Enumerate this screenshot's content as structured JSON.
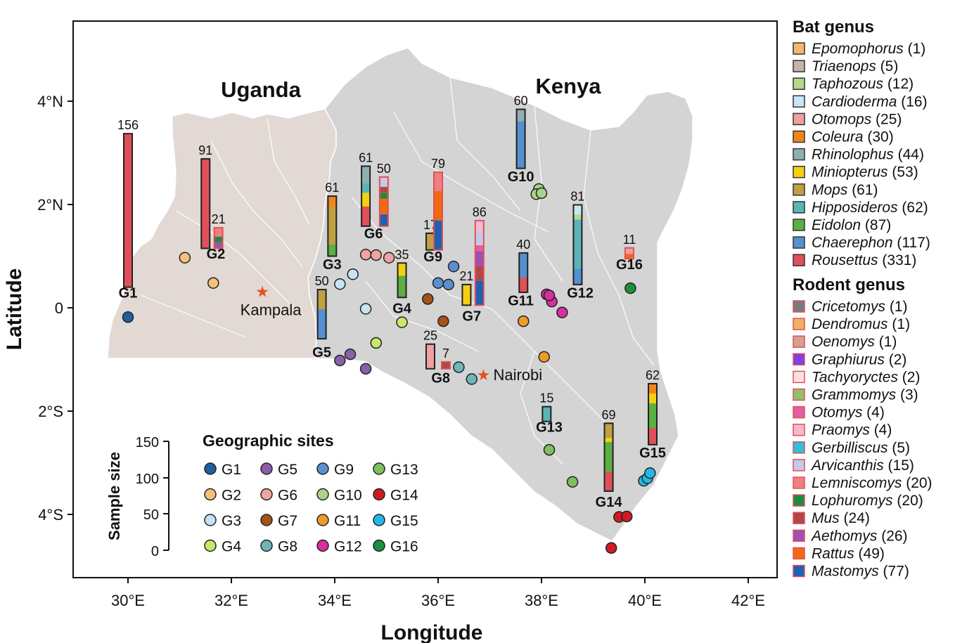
{
  "axes": {
    "xlabel": "Longitude",
    "ylabel": "Latitude",
    "xticks": [
      "30°E",
      "32°E",
      "34°E",
      "36°E",
      "38°E",
      "40°E",
      "42°E"
    ],
    "xtick_values": [
      30,
      32,
      34,
      36,
      38,
      40,
      42
    ],
    "yticks": [
      "4°N",
      "2°N",
      "0",
      "2°S",
      "4°S"
    ],
    "ytick_values": [
      4,
      2,
      0,
      -2,
      -4
    ],
    "xlim": [
      29,
      42.6
    ],
    "ylim": [
      -5.2,
      5.5
    ]
  },
  "map": {
    "countries": [
      {
        "name": "Uganda",
        "color": "#e2d9d4"
      },
      {
        "name": "Kenya",
        "color": "#d4d4d4"
      }
    ],
    "cities": [
      {
        "name": "Kampala",
        "lon": 32.6,
        "lat": 0.32,
        "color": "#e8501c"
      },
      {
        "name": "Nairobi",
        "lon": 36.85,
        "lat": -1.29,
        "color": "#e8501c"
      }
    ]
  },
  "chart_data": {
    "type": "map_stacked_bars",
    "colors": {
      "sites": {
        "G1": "#1f5fa0",
        "G2": "#f5c07a",
        "G3": "#c7e3f3",
        "G4": "#c7e86b",
        "G5": "#8a5ea8",
        "G6": "#f0a3a0",
        "G7": "#a5521b",
        "G8": "#6fb5b8",
        "G9": "#5a8fd0",
        "G10": "#a8d48a",
        "G11": "#ee9b2a",
        "G12": "#d62f9e",
        "G13": "#7fbf5f",
        "G14": "#d11b22",
        "G15": "#22b8e8",
        "G16": "#1e8f3e"
      }
    },
    "sample_size_scale": {
      "label": "Sample size",
      "ticks": [
        150,
        100,
        50,
        0
      ]
    },
    "bat_legend": {
      "title": "Bat genus",
      "items": [
        {
          "genus": "Epomophorus",
          "count": "(1)",
          "color": "#f5b870"
        },
        {
          "genus": "Triaenops",
          "count": "(5)",
          "color": "#c4b5a8"
        },
        {
          "genus": "Taphozous",
          "count": "(12)",
          "color": "#b5d98a"
        },
        {
          "genus": "Cardioderma",
          "count": "(16)",
          "color": "#c8e6f5"
        },
        {
          "genus": "Otomops",
          "count": "(25)",
          "color": "#f0a0a0"
        },
        {
          "genus": "Coleura",
          "count": "(30)",
          "color": "#f0861a"
        },
        {
          "genus": "Rhinolophus",
          "count": "(44)",
          "color": "#8fb0b0"
        },
        {
          "genus": "Miniopterus",
          "count": "(53)",
          "color": "#f5d010"
        },
        {
          "genus": "Mops",
          "count": "(61)",
          "color": "#c0a040"
        },
        {
          "genus": "Hipposideros",
          "count": "(62)",
          "color": "#5ab5b8"
        },
        {
          "genus": "Eidolon",
          "count": "(87)",
          "color": "#5ab040"
        },
        {
          "genus": "Chaerephon",
          "count": "(117)",
          "color": "#5590d0"
        },
        {
          "genus": "Rousettus",
          "count": "(331)",
          "color": "#e0505a"
        }
      ]
    },
    "rodent_legend": {
      "title": "Rodent genus",
      "items": [
        {
          "genus": "Cricetomys",
          "count": "(1)",
          "color": "#7a7a7a"
        },
        {
          "genus": "Dendromus",
          "count": "(1)",
          "color": "#f0b060"
        },
        {
          "genus": "Oenomys",
          "count": "(1)",
          "color": "#d4a090"
        },
        {
          "genus": "Graphiurus",
          "count": "(2)",
          "color": "#8040e0"
        },
        {
          "genus": "Tachyoryctes",
          "count": "(2)",
          "color": "#f8e0e0"
        },
        {
          "genus": "Grammomys",
          "count": "(3)",
          "color": "#90c070"
        },
        {
          "genus": "Otomys",
          "count": "(4)",
          "color": "#e060a0"
        },
        {
          "genus": "Praomys",
          "count": "(4)",
          "color": "#f8b8d0"
        },
        {
          "genus": "Gerbilliscus",
          "count": "(5)",
          "color": "#30c0d8"
        },
        {
          "genus": "Arvicanthis",
          "count": "(15)",
          "color": "#c8c8e8"
        },
        {
          "genus": "Lemniscomys",
          "count": "(20)",
          "color": "#f08080"
        },
        {
          "genus": "Lophuromys",
          "count": "(20)",
          "color": "#208a40"
        },
        {
          "genus": "Mus",
          "count": "(24)",
          "color": "#b04848"
        },
        {
          "genus": "Aethomys",
          "count": "(26)",
          "color": "#a050b0"
        },
        {
          "genus": "Rattus",
          "count": "(49)",
          "color": "#f06a10"
        },
        {
          "genus": "Mastomys",
          "count": "(77)",
          "color": "#2060b0"
        }
      ]
    },
    "sites_legend": {
      "title": "Geographic sites",
      "items": [
        "G1",
        "G2",
        "G3",
        "G4",
        "G5",
        "G6",
        "G7",
        "G8",
        "G9",
        "G10",
        "G11",
        "G12",
        "G13",
        "G14",
        "G15",
        "G16"
      ]
    },
    "site_labels": [
      {
        "id": "G1",
        "lon": 30.0,
        "lat": 0.2
      },
      {
        "id": "G2",
        "lon": 31.7,
        "lat": 0.95
      },
      {
        "id": "G3",
        "lon": 33.95,
        "lat": 0.75
      },
      {
        "id": "G4",
        "lon": 35.3,
        "lat": -0.1
      },
      {
        "id": "G5",
        "lon": 33.75,
        "lat": -0.95
      },
      {
        "id": "G6",
        "lon": 34.75,
        "lat": 1.35
      },
      {
        "id": "G7",
        "lon": 36.65,
        "lat": -0.25
      },
      {
        "id": "G8",
        "lon": 36.05,
        "lat": -1.45
      },
      {
        "id": "G9",
        "lon": 35.9,
        "lat": 0.9
      },
      {
        "id": "G10",
        "lon": 37.6,
        "lat": 2.45
      },
      {
        "id": "G11",
        "lon": 37.6,
        "lat": 0.05
      },
      {
        "id": "G12",
        "lon": 38.75,
        "lat": 0.2
      },
      {
        "id": "G13",
        "lon": 38.15,
        "lat": -2.4
      },
      {
        "id": "G14",
        "lon": 39.3,
        "lat": -3.85
      },
      {
        "id": "G15",
        "lon": 40.15,
        "lat": -2.9
      },
      {
        "id": "G16",
        "lon": 39.7,
        "lat": 0.75
      }
    ],
    "bars": [
      {
        "n": 156,
        "lon": 30.0,
        "base_lat": 0.4,
        "outline": "#222",
        "segments": [
          [
            "#e0505a",
            156
          ]
        ]
      },
      {
        "n": 91,
        "lon": 31.5,
        "base_lat": 1.15,
        "outline": "#222",
        "segments": [
          [
            "#e0505a",
            91
          ]
        ]
      },
      {
        "n": 21,
        "lon": 31.75,
        "base_lat": 1.15,
        "outline": "#e0505a",
        "segments": [
          [
            "#a050b0",
            6
          ],
          [
            "#208a40",
            6
          ],
          [
            "#f08080",
            9
          ]
        ]
      },
      {
        "n": 61,
        "lon": 33.95,
        "base_lat": 1.0,
        "outline": "#222",
        "segments": [
          [
            "#5ab040",
            12
          ],
          [
            "#c0a040",
            38
          ],
          [
            "#f0861a",
            11
          ]
        ]
      },
      {
        "n": 50,
        "lon": 33.75,
        "base_lat": -0.6,
        "outline": "#222",
        "segments": [
          [
            "#5590d0",
            30
          ],
          [
            "#c0a040",
            20
          ]
        ]
      },
      {
        "n": 61,
        "lon": 34.6,
        "base_lat": 1.58,
        "outline": "#222",
        "segments": [
          [
            "#e0505a",
            20
          ],
          [
            "#f5d010",
            14
          ],
          [
            "#5ab5b8",
            10
          ],
          [
            "#8fb0b0",
            17
          ]
        ]
      },
      {
        "n": 50,
        "lon": 34.95,
        "base_lat": 1.58,
        "outline": "#e0505a",
        "segments": [
          [
            "#2060b0",
            12
          ],
          [
            "#f06a10",
            16
          ],
          [
            "#208a40",
            6
          ],
          [
            "#b04848",
            6
          ],
          [
            "#c8c8e8",
            10
          ]
        ]
      },
      {
        "n": 35,
        "lon": 35.3,
        "base_lat": 0.2,
        "outline": "#222",
        "segments": [
          [
            "#5ab040",
            22
          ],
          [
            "#f5d010",
            13
          ]
        ]
      },
      {
        "n": 17,
        "lon": 35.85,
        "base_lat": 1.12,
        "outline": "#222",
        "segments": [
          [
            "#c0a040",
            17
          ]
        ]
      },
      {
        "n": 79,
        "lon": 36.0,
        "base_lat": 1.12,
        "outline": "#e0505a",
        "segments": [
          [
            "#2060b0",
            30
          ],
          [
            "#f06a10",
            30
          ],
          [
            "#f08080",
            19
          ]
        ]
      },
      {
        "n": 21,
        "lon": 36.55,
        "base_lat": 0.05,
        "outline": "#222",
        "segments": [
          [
            "#f5d010",
            21
          ]
        ]
      },
      {
        "n": 86,
        "lon": 36.8,
        "base_lat": 0.05,
        "outline": "#e0505a",
        "segments": [
          [
            "#2060b0",
            25
          ],
          [
            "#b04848",
            15
          ],
          [
            "#a050b0",
            15
          ],
          [
            "#e060a0",
            6
          ],
          [
            "#c8c8e8",
            15
          ],
          [
            "#f8b8d0",
            10
          ]
        ]
      },
      {
        "n": 25,
        "lon": 35.85,
        "base_lat": -1.18,
        "outline": "#222",
        "segments": [
          [
            "#f0a0a0",
            25
          ]
        ]
      },
      {
        "n": 7,
        "lon": 36.15,
        "base_lat": -1.18,
        "outline": "#e0505a",
        "segments": [
          [
            "#b04848",
            7
          ]
        ]
      },
      {
        "n": 60,
        "lon": 37.6,
        "base_lat": 2.7,
        "outline": "#222",
        "segments": [
          [
            "#5590d0",
            48
          ],
          [
            "#8fb0b0",
            12
          ]
        ]
      },
      {
        "n": 40,
        "lon": 37.65,
        "base_lat": 0.3,
        "outline": "#222",
        "segments": [
          [
            "#e0505a",
            15
          ],
          [
            "#5590d0",
            25
          ]
        ]
      },
      {
        "n": 81,
        "lon": 38.7,
        "base_lat": 0.45,
        "outline": "#222",
        "segments": [
          [
            "#5590d0",
            16
          ],
          [
            "#5ab5b8",
            50
          ],
          [
            "#b5d98a",
            5
          ],
          [
            "#c8e6f5",
            10
          ]
        ]
      },
      {
        "n": 11,
        "lon": 39.7,
        "base_lat": 0.95,
        "outline": "#e0505a",
        "segments": [
          [
            "#f06a10",
            5
          ],
          [
            "#f0a0a0",
            6
          ]
        ]
      },
      {
        "n": 15,
        "lon": 38.1,
        "base_lat": -2.2,
        "outline": "#222",
        "segments": [
          [
            "#5ab5b8",
            15
          ]
        ]
      },
      {
        "n": 69,
        "lon": 39.3,
        "base_lat": -3.55,
        "outline": "#222",
        "segments": [
          [
            "#e0505a",
            20
          ],
          [
            "#5ab040",
            30
          ],
          [
            "#f5d010",
            4
          ],
          [
            "#c0a040",
            15
          ]
        ]
      },
      {
        "n": 62,
        "lon": 40.15,
        "base_lat": -2.65,
        "outline": "#222",
        "segments": [
          [
            "#e0505a",
            17
          ],
          [
            "#5ab040",
            25
          ],
          [
            "#f5d010",
            10
          ],
          [
            "#f0861a",
            10
          ]
        ]
      }
    ],
    "points": [
      {
        "site": "G1",
        "lon": 30.0,
        "lat": -0.18
      },
      {
        "site": "G2",
        "lon": 31.1,
        "lat": 0.97
      },
      {
        "site": "G2",
        "lon": 31.65,
        "lat": 0.48
      },
      {
        "site": "G3",
        "lon": 34.1,
        "lat": 0.46
      },
      {
        "site": "G3",
        "lon": 34.35,
        "lat": 0.65
      },
      {
        "site": "G3",
        "lon": 34.6,
        "lat": -0.02
      },
      {
        "site": "G4",
        "lon": 35.3,
        "lat": -0.28
      },
      {
        "site": "G4",
        "lon": 34.8,
        "lat": -0.68
      },
      {
        "site": "G5",
        "lon": 34.1,
        "lat": -1.02
      },
      {
        "site": "G5",
        "lon": 34.3,
        "lat": -0.9
      },
      {
        "site": "G5",
        "lon": 34.6,
        "lat": -1.18
      },
      {
        "site": "G6",
        "lon": 34.6,
        "lat": 1.03
      },
      {
        "site": "G6",
        "lon": 34.8,
        "lat": 1.02
      },
      {
        "site": "G6",
        "lon": 35.05,
        "lat": 0.97
      },
      {
        "site": "G7",
        "lon": 35.8,
        "lat": 0.17
      },
      {
        "site": "G7",
        "lon": 36.1,
        "lat": -0.26
      },
      {
        "site": "G8",
        "lon": 36.4,
        "lat": -1.15
      },
      {
        "site": "G8",
        "lon": 36.65,
        "lat": -1.38
      },
      {
        "site": "G9",
        "lon": 36.0,
        "lat": 0.48
      },
      {
        "site": "G9",
        "lon": 36.2,
        "lat": 0.45
      },
      {
        "site": "G9",
        "lon": 36.3,
        "lat": 0.8
      },
      {
        "site": "G10",
        "lon": 37.95,
        "lat": 2.3
      },
      {
        "site": "G10",
        "lon": 37.9,
        "lat": 2.2
      },
      {
        "site": "G10",
        "lon": 38.0,
        "lat": 2.22
      },
      {
        "site": "G11",
        "lon": 37.65,
        "lat": -0.26
      },
      {
        "site": "G11",
        "lon": 38.05,
        "lat": -0.95
      },
      {
        "site": "G12",
        "lon": 38.1,
        "lat": 0.26
      },
      {
        "site": "G12",
        "lon": 38.2,
        "lat": 0.12
      },
      {
        "site": "G12",
        "lon": 38.4,
        "lat": -0.09
      },
      {
        "site": "G12",
        "lon": 38.15,
        "lat": 0.24
      },
      {
        "site": "G13",
        "lon": 38.15,
        "lat": -2.75
      },
      {
        "site": "G13",
        "lon": 38.6,
        "lat": -3.37
      },
      {
        "site": "G14",
        "lon": 39.5,
        "lat": -4.05
      },
      {
        "site": "G14",
        "lon": 39.65,
        "lat": -4.04
      },
      {
        "site": "G14",
        "lon": 39.35,
        "lat": -4.65
      },
      {
        "site": "G15",
        "lon": 39.98,
        "lat": -3.35
      },
      {
        "site": "G15",
        "lon": 40.05,
        "lat": -3.3
      },
      {
        "site": "G15",
        "lon": 40.1,
        "lat": -3.2
      },
      {
        "site": "G16",
        "lon": 39.72,
        "lat": 0.38
      }
    ]
  }
}
